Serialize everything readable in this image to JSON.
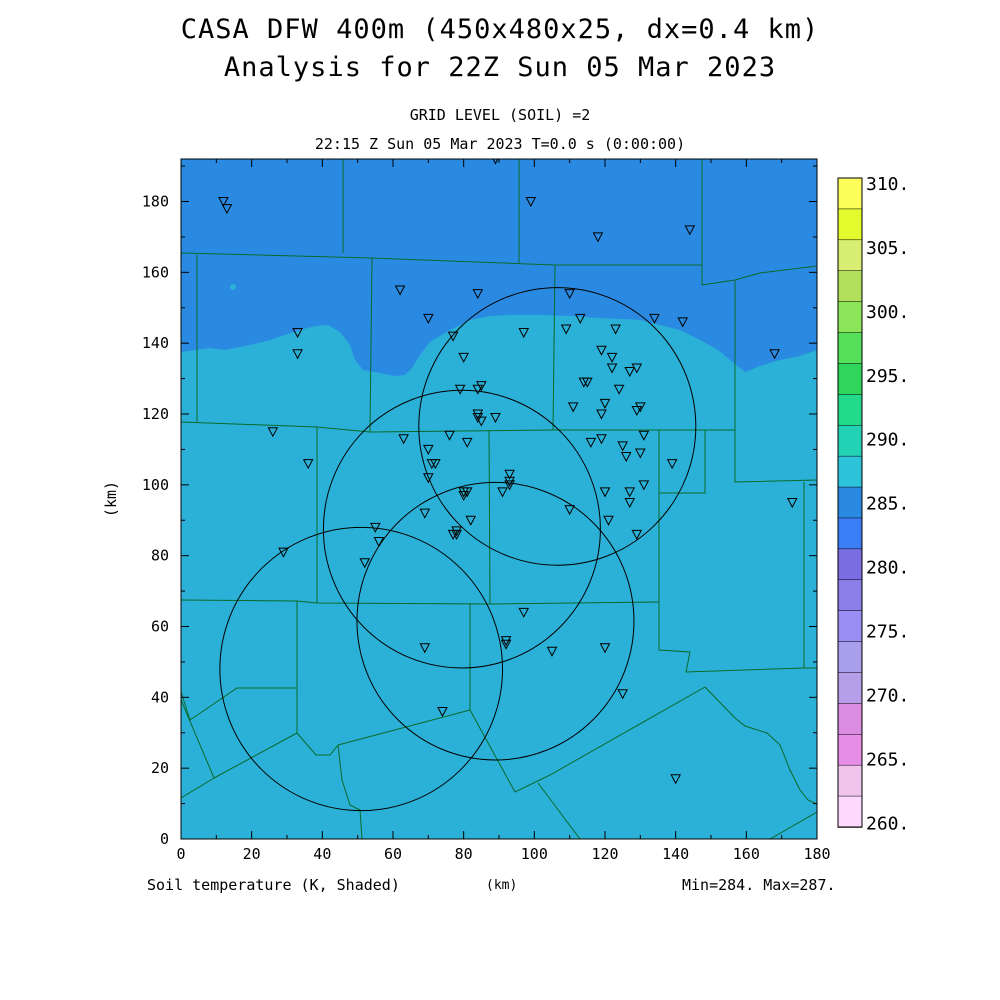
{
  "title": {
    "line1": "CASA DFW 400m (450x480x25, dx=0.4 km)",
    "line2": "Analysis for 22Z Sun 05 Mar 2023",
    "sub1": "GRID LEVEL (SOIL) =2",
    "sub2": "22:15 Z Sun 05 Mar 2023   T=0.0 s (0:00:00)"
  },
  "footer": {
    "field": "Soil temperature (K, Shaded)",
    "xunit": "(km)",
    "minmax": "Min=284. Max=287."
  },
  "axes": {
    "x_label": "(km)",
    "y_label": "(km)",
    "x_range": [
      0,
      180
    ],
    "y_range": [
      0,
      192
    ],
    "x_ticks": [
      "0",
      "20",
      "40",
      "60",
      "80",
      "100",
      "120",
      "140",
      "160",
      "180"
    ],
    "y_ticks": [
      "0",
      "20",
      "40",
      "60",
      "80",
      "100",
      "120",
      "140",
      "160",
      "180"
    ]
  },
  "colors": {
    "field_285": "#2bb1d7",
    "field_280": "#2a8ae2",
    "counties": "#0a6a2a"
  },
  "colorbar": {
    "labels": [
      "310.",
      "305.",
      "300.",
      "295.",
      "290.",
      "285.",
      "280.",
      "275.",
      "270.",
      "265.",
      "260."
    ],
    "colors": [
      "#fdfd5a",
      "#e3fa2c",
      "#d8ee72",
      "#b3e05c",
      "#8ce65a",
      "#56df5a",
      "#2fd65a",
      "#23d98c",
      "#23d2b4",
      "#2dc3d8",
      "#2a8ae2",
      "#3c7ef5",
      "#7a6ee2",
      "#8c7ee8",
      "#9a8ef5",
      "#a99eea",
      "#b79ee9",
      "#da8ce0",
      "#e68ee6",
      "#f1c4ee",
      "#fdd9fd"
    ]
  },
  "radar_rings": [
    {
      "center_km": [
        106.5,
        116.5
      ],
      "radius_km": 39.2
    },
    {
      "center_km": [
        79.5,
        87.5
      ],
      "radius_km": 39.2
    },
    {
      "center_km": [
        89,
        61.5
      ],
      "radius_km": 39.2
    },
    {
      "center_km": [
        51,
        48
      ],
      "radius_km": 40
    }
  ],
  "stations_km": [
    [
      89,
      192
    ],
    [
      12,
      180
    ],
    [
      13,
      178
    ],
    [
      99,
      180
    ],
    [
      118,
      170
    ],
    [
      144,
      172
    ],
    [
      62,
      155
    ],
    [
      84,
      154
    ],
    [
      110,
      154
    ],
    [
      70,
      147
    ],
    [
      113,
      147
    ],
    [
      134,
      147
    ],
    [
      142,
      146
    ],
    [
      33,
      143
    ],
    [
      77,
      142
    ],
    [
      97,
      143
    ],
    [
      109,
      144
    ],
    [
      123,
      144
    ],
    [
      33,
      137
    ],
    [
      80,
      136
    ],
    [
      119,
      138
    ],
    [
      122,
      136
    ],
    [
      168,
      137
    ],
    [
      122,
      133
    ],
    [
      127,
      132
    ],
    [
      129,
      133
    ],
    [
      79,
      127
    ],
    [
      84,
      127
    ],
    [
      85,
      128
    ],
    [
      114,
      129
    ],
    [
      115,
      129
    ],
    [
      124,
      127
    ],
    [
      111,
      122
    ],
    [
      120,
      123
    ],
    [
      129,
      121
    ],
    [
      130,
      122
    ],
    [
      84,
      120
    ],
    [
      84,
      119
    ],
    [
      85,
      118
    ],
    [
      89,
      119
    ],
    [
      119,
      120
    ],
    [
      26,
      115
    ],
    [
      63,
      113
    ],
    [
      76,
      114
    ],
    [
      70,
      110
    ],
    [
      116,
      112
    ],
    [
      119,
      113
    ],
    [
      125,
      111
    ],
    [
      126,
      108
    ],
    [
      130,
      109
    ],
    [
      131,
      114
    ],
    [
      36,
      106
    ],
    [
      71,
      106
    ],
    [
      72,
      106
    ],
    [
      81,
      112
    ],
    [
      139,
      106
    ],
    [
      93,
      103
    ],
    [
      93,
      101
    ],
    [
      93,
      100
    ],
    [
      70,
      102
    ],
    [
      80,
      98
    ],
    [
      81,
      98
    ],
    [
      80,
      97
    ],
    [
      91,
      98
    ],
    [
      120,
      98
    ],
    [
      127,
      98
    ],
    [
      131,
      100
    ],
    [
      127,
      95
    ],
    [
      69,
      92
    ],
    [
      82,
      90
    ],
    [
      110,
      93
    ],
    [
      121,
      90
    ],
    [
      173,
      95
    ],
    [
      55,
      88
    ],
    [
      78,
      87
    ],
    [
      77,
      86
    ],
    [
      78,
      86
    ],
    [
      129,
      86
    ],
    [
      56,
      84
    ],
    [
      29,
      81
    ],
    [
      52,
      78
    ],
    [
      97,
      64
    ],
    [
      69,
      54
    ],
    [
      92,
      56
    ],
    [
      92,
      55
    ],
    [
      105,
      53
    ],
    [
      120,
      54
    ],
    [
      125,
      41
    ],
    [
      74,
      36
    ],
    [
      140,
      17
    ]
  ]
}
